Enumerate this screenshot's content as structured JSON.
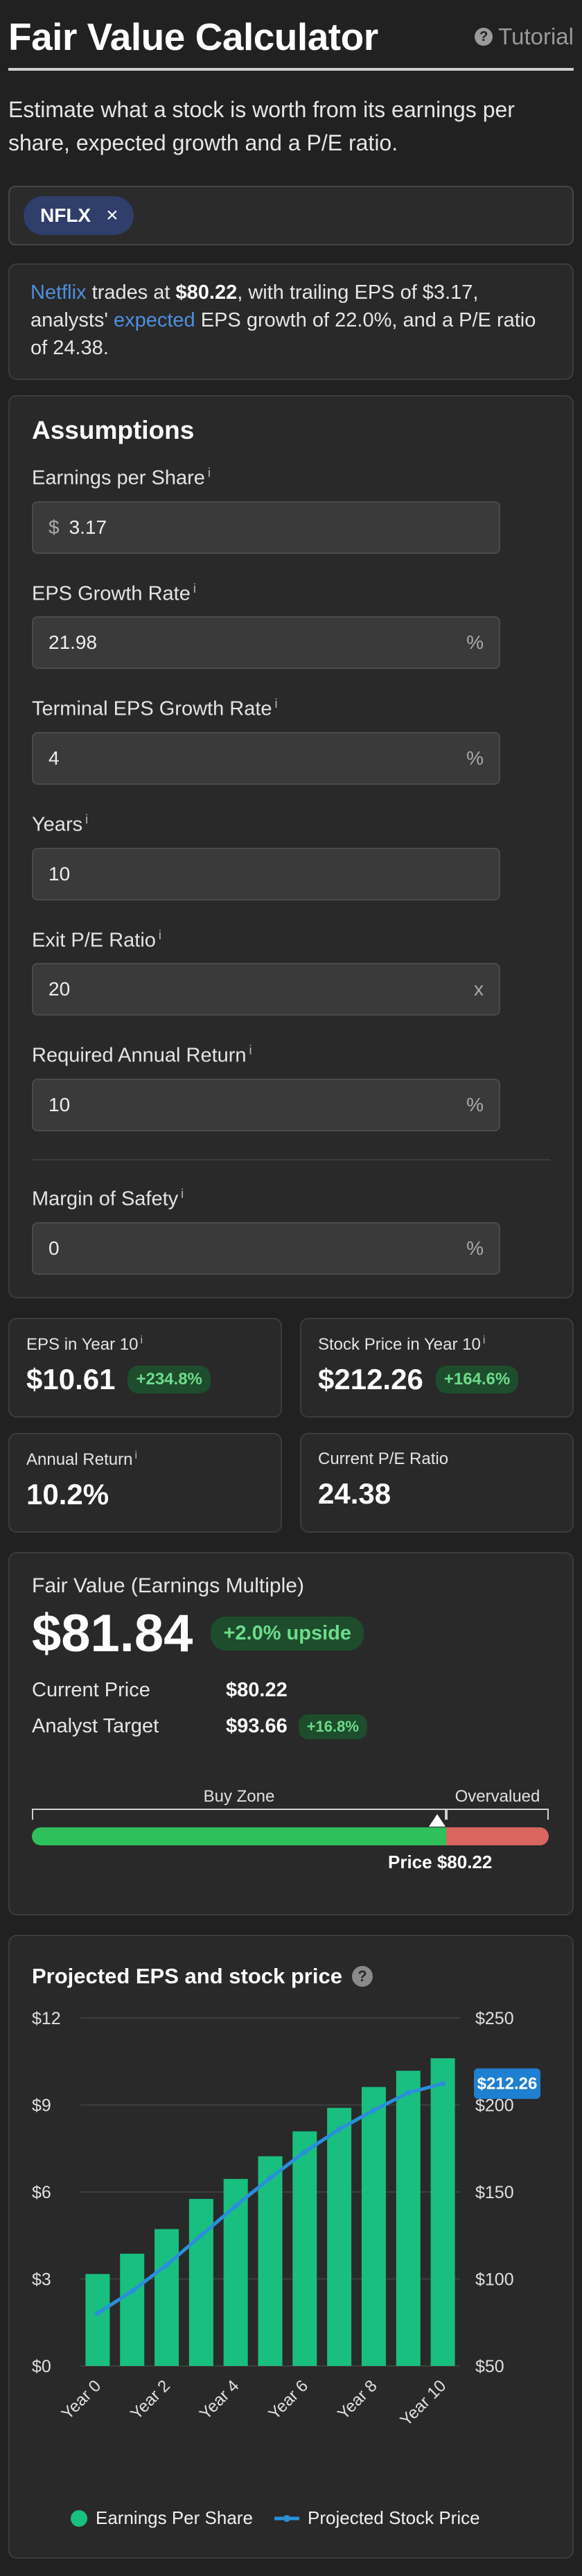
{
  "header": {
    "title": "Fair Value Calculator",
    "tutorial_label": "Tutorial"
  },
  "intro": "Estimate what a stock is worth from its earnings per share, expected growth and a P/E ratio.",
  "ticker": {
    "symbol": "NFLX",
    "remove": "×"
  },
  "summary": {
    "company": "Netflix",
    "t1": " trades at ",
    "price": "$80.22",
    "t2": ", with trailing EPS of $3.17, analysts' ",
    "expected": "expected",
    "t3": " EPS growth of 22.0%, and a P/E ratio of 24.38."
  },
  "assumptions": {
    "title": "Assumptions",
    "info": "i",
    "fields": [
      {
        "label": "Earnings per Share",
        "prefix": "$",
        "value": "3.17",
        "suffix": ""
      },
      {
        "label": "EPS Growth Rate",
        "prefix": "",
        "value": "21.98",
        "suffix": "%"
      },
      {
        "label": "Terminal EPS Growth Rate",
        "prefix": "",
        "value": "4",
        "suffix": "%"
      },
      {
        "label": "Years",
        "prefix": "",
        "value": "10",
        "suffix": ""
      },
      {
        "label": "Exit P/E Ratio",
        "prefix": "",
        "value": "20",
        "suffix": "x"
      },
      {
        "label": "Required Annual Return",
        "prefix": "",
        "value": "10",
        "suffix": "%"
      }
    ],
    "margin": {
      "label": "Margin of Safety",
      "value": "0",
      "suffix": "%"
    }
  },
  "stats": {
    "eps_y10": {
      "label": "EPS in Year 10",
      "value": "$10.61",
      "badge": "+234.8%"
    },
    "price_y10": {
      "label": "Stock Price in Year 10",
      "value": "$212.26",
      "badge": "+164.6%"
    },
    "annual_return": {
      "label": "Annual Return",
      "value": "10.2%"
    },
    "current_pe": {
      "label": "Current P/E Ratio",
      "value": "24.38"
    }
  },
  "fair_value": {
    "title": "Fair Value (Earnings Multiple)",
    "value": "$81.84",
    "upside": "+2.0% upside",
    "current_label": "Current Price",
    "current_value": "$80.22",
    "target_label": "Analyst Target",
    "target_value": "$93.66",
    "target_badge": "+16.8%",
    "buy_zone": "Buy Zone",
    "overvalued": "Overvalued",
    "marker_label": "Price $80.22",
    "buy_zone_fraction": 0.802,
    "marker_fraction": 0.785,
    "colors": {
      "buy": "#2ec05a",
      "overvalued": "#d9655f"
    }
  },
  "chart": {
    "title": "Projected EPS and stock price",
    "help": "?"
  },
  "chart_data": {
    "type": "bar",
    "title": "Projected EPS and stock price",
    "categories": [
      "Year 0",
      "Year 1",
      "Year 2",
      "Year 3",
      "Year 4",
      "Year 5",
      "Year 6",
      "Year 7",
      "Year 8",
      "Year 9",
      "Year 10"
    ],
    "x_tick_labels": [
      "Year 0",
      "Year 2",
      "Year 4",
      "Year 6",
      "Year 8",
      "Year 10"
    ],
    "series": [
      {
        "name": "Earnings Per Share",
        "type": "bar",
        "axis": "left",
        "color": "#19bf7f",
        "values": [
          3.17,
          3.87,
          4.72,
          5.76,
          6.45,
          7.23,
          8.09,
          8.9,
          9.62,
          10.18,
          10.61
        ]
      },
      {
        "name": "Projected Stock Price",
        "type": "line",
        "axis": "right",
        "color": "#2a8fdb",
        "values": [
          80.22,
          93,
          108,
          125,
          142,
          158,
          173,
          186,
          197,
          207,
          212.26
        ]
      }
    ],
    "y_left": {
      "ticks": [
        "$0",
        "$3",
        "$6",
        "$9",
        "$12"
      ],
      "min": 0,
      "max": 12
    },
    "y_right": {
      "ticks": [
        "$50",
        "$100",
        "$150",
        "$200",
        "$250"
      ],
      "min": 50,
      "max": 250
    },
    "end_label": "$212.26",
    "grid": true,
    "legend_position": "bottom"
  }
}
